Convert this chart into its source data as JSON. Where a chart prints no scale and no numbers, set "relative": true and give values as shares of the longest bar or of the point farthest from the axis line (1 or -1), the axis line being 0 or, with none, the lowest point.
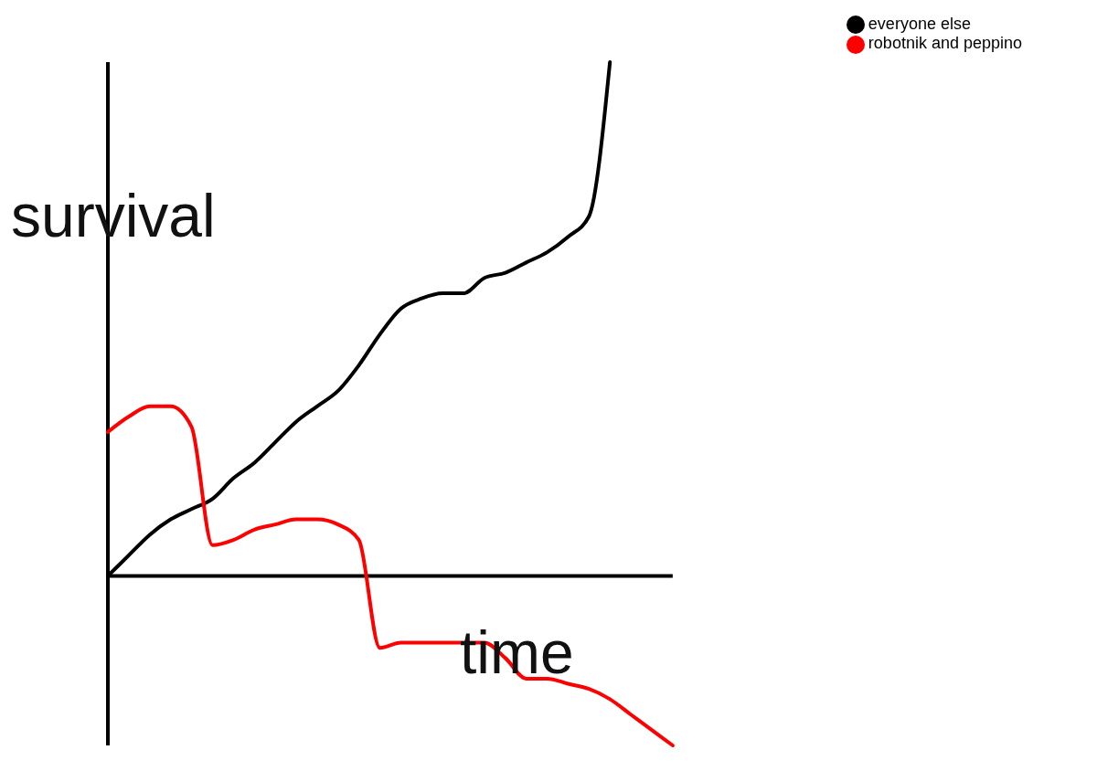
{
  "chart_data": {
    "type": "line",
    "relative": true,
    "xlabel": "time",
    "ylabel": "survival",
    "legend": "top right",
    "marker": "none",
    "line_style": "solid",
    "categories": [
      null,
      null,
      null,
      null,
      null,
      null,
      null,
      null,
      null,
      null,
      null,
      null,
      null,
      null,
      null,
      null,
      null,
      null,
      null,
      null,
      null,
      null,
      null,
      null,
      null,
      null,
      null,
      null
    ],
    "series": [
      {
        "name": "everyone else",
        "color": "#000000",
        "values": [
          0,
          0.04,
          0.08,
          0.11,
          0.13,
          0.15,
          0.19,
          0.22,
          0.26,
          0.3,
          0.33,
          0.36,
          0.41,
          0.47,
          0.52,
          0.54,
          0.55,
          0.55,
          0.58,
          0.59,
          0.61,
          0.63,
          0.66,
          0.7,
          1,
          null,
          null,
          null
        ]
      },
      {
        "name": "robotnik and peppino",
        "color": "#ff0000",
        "values": [
          0.28,
          0.31,
          0.33,
          0.33,
          0.29,
          0.06,
          0.07,
          0.09,
          0.1,
          0.11,
          0.11,
          0.1,
          0.07,
          -0.14,
          -0.13,
          -0.13,
          -0.13,
          -0.13,
          -0.13,
          -0.16,
          -0.2,
          -0.2,
          -0.21,
          -0.22,
          -0.24,
          -0.27,
          -0.3,
          -0.33
        ]
      }
    ]
  }
}
